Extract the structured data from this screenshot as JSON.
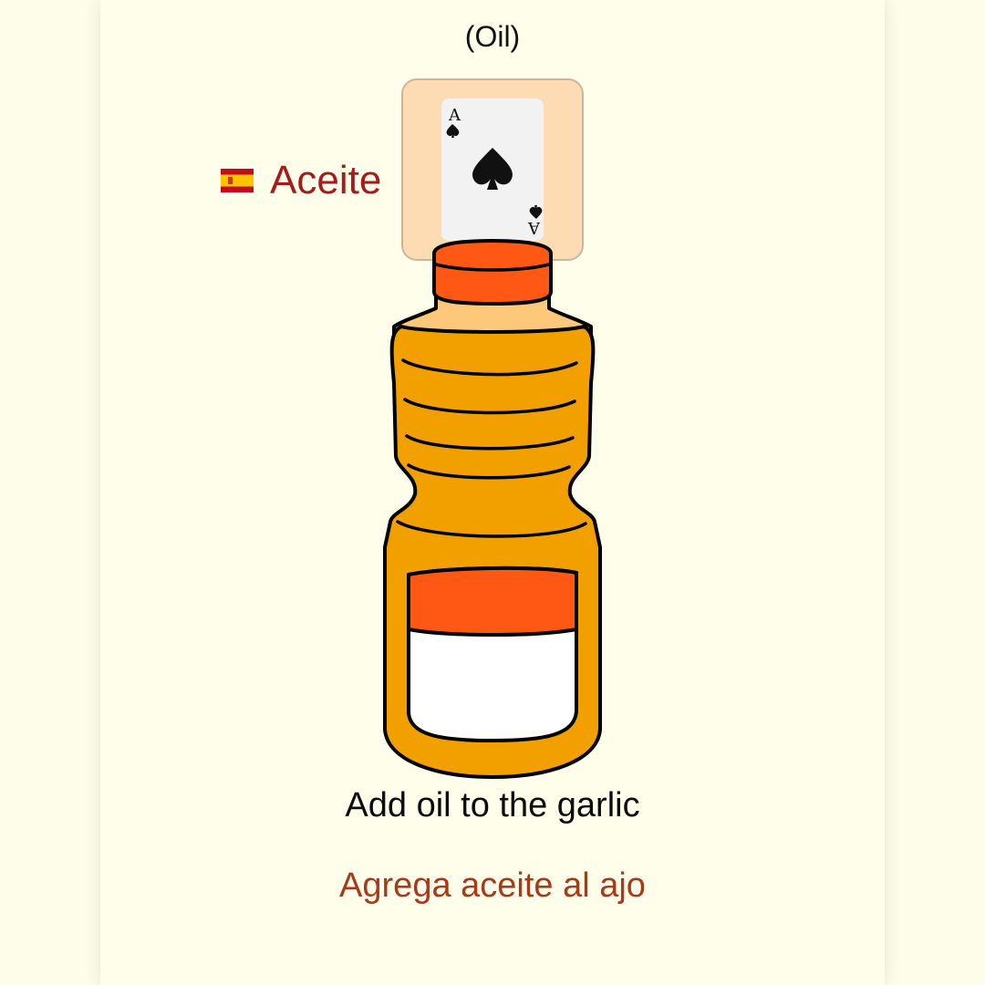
{
  "lesson": {
    "translation_hint": "(Oil)",
    "word": "Aceite",
    "flag_icon": "spain-flag-icon",
    "caption_english": "Add oil to the garlic",
    "caption_spanish": "Agrega aceite al ajo"
  },
  "card_badge": {
    "rank": "A",
    "suit_icon": "spade-icon"
  },
  "colors": {
    "background": "#fefeea",
    "word": "#a51c1c",
    "caption_spanish": "#a83a1a",
    "bottle_body": "#f2a000",
    "bottle_cap": "#ff5714",
    "badge_bg": "#fedcb3"
  }
}
